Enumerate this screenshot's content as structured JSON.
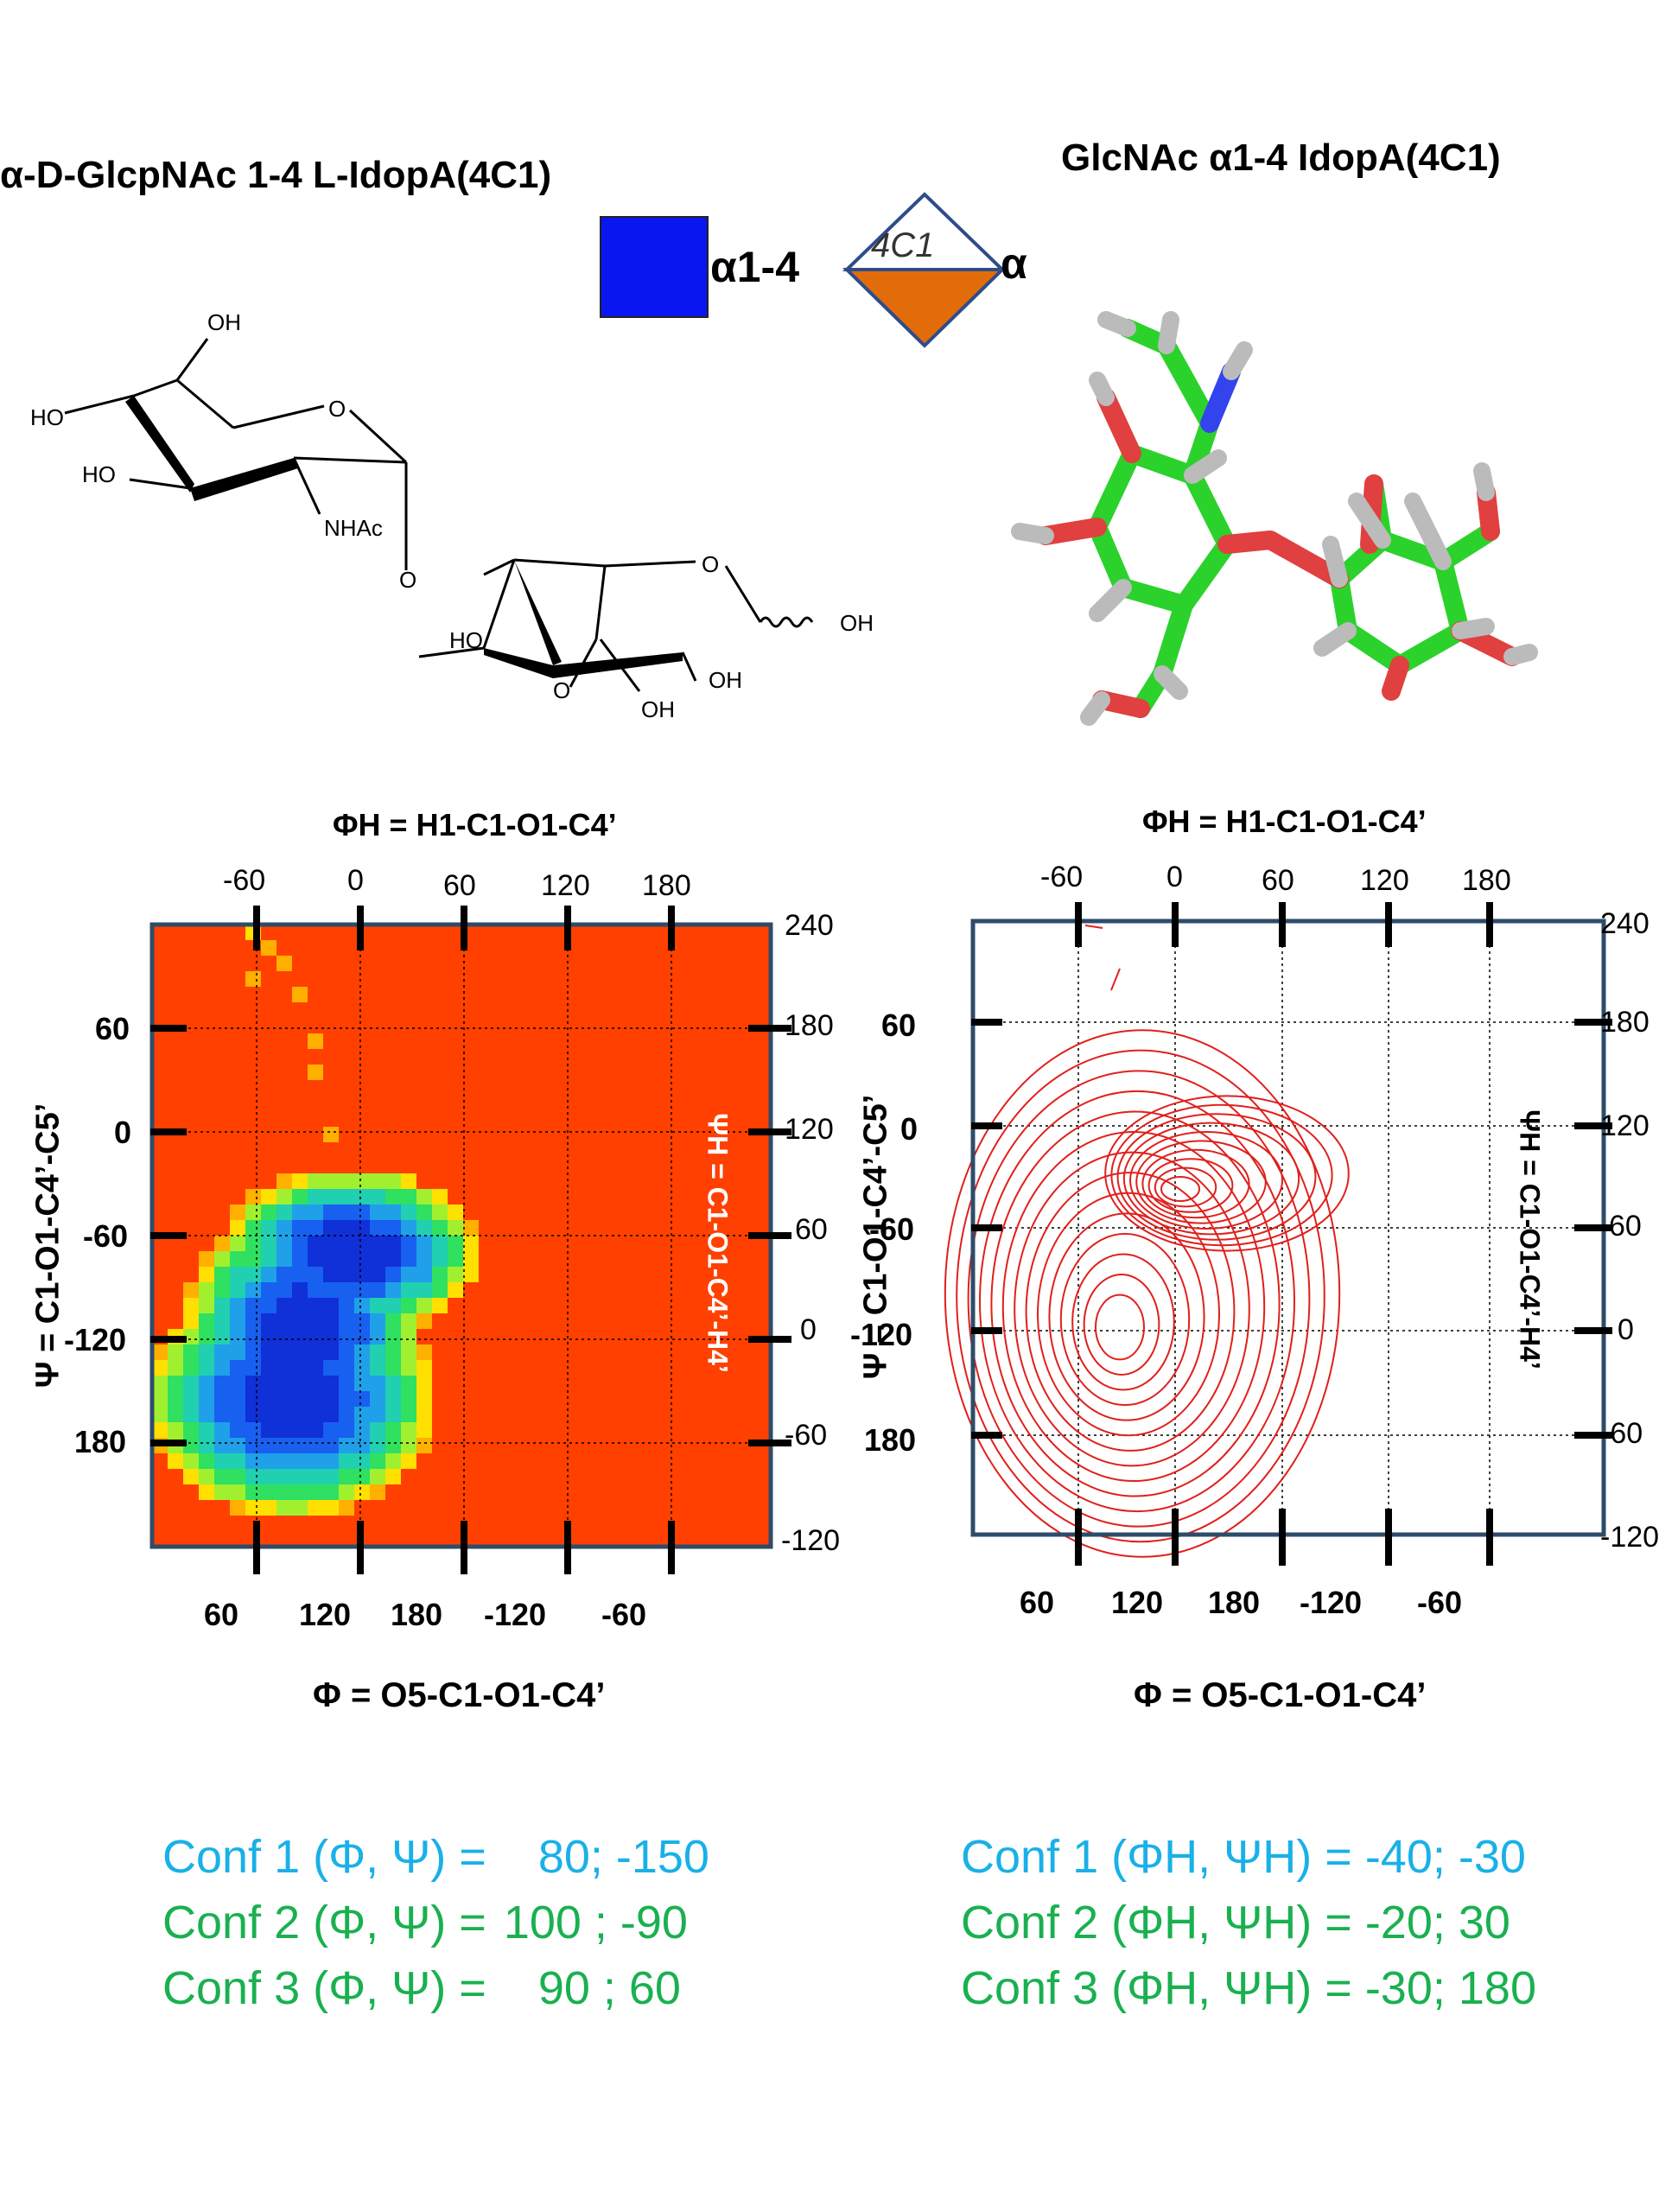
{
  "left_title": "α-D-GlcpNAc 1-4 L-IdopA(4C1)",
  "right_title": "GlcNAc α1-4 IdopA(4C1)",
  "symbol": {
    "linkage_label": "α1-4",
    "ring_label": "4C1",
    "anomer_label": "α",
    "square_color": "#0a16f0",
    "diamond_bottom_color": "#e36c0a"
  },
  "structure_labels": {
    "oh_top": "OH",
    "ho_left": "HO",
    "ho_left2": "HO",
    "o_ring1": "O",
    "nhac": "NHAc",
    "o_link": "O",
    "o_ring2": "O",
    "oh_right": "OH",
    "ho_bottom": "HO",
    "oh_bottom": "OH",
    "o_carbonyl": "O",
    "oh_acid": "OH"
  },
  "left_map": {
    "top_axis_label": "ΦH = H1-C1-O1-C4’",
    "top_ticks": [
      "-60",
      "0",
      "60",
      "120",
      "180"
    ],
    "left_ticks": [
      "60",
      "0",
      "-60",
      "-120",
      "180"
    ],
    "right_ticks": [
      "240",
      "180",
      "120",
      "60",
      "0",
      "-60",
      "-120"
    ],
    "bottom_ticks": [
      "60",
      "120",
      "180",
      "-120",
      "-60"
    ],
    "left_axis_label": "Ψ = C1-O1-C4’-C5’",
    "right_axis_label": "ΨH = C1-O1-C4’-H4’",
    "bottom_axis_label": "Φ = O5-C1-O1-C4’",
    "background_color": "#ff4000"
  },
  "right_map": {
    "top_axis_label": "ΦH = H1-C1-O1-C4’",
    "top_ticks": [
      "-60",
      "0",
      "60",
      "120",
      "180"
    ],
    "left_ticks": [
      "60",
      "0",
      "-60",
      "-120",
      "180"
    ],
    "right_ticks": [
      "240",
      "180",
      "120",
      "60",
      "0",
      "-60",
      "-120"
    ],
    "bottom_ticks": [
      "60",
      "120",
      "180",
      "-120",
      "-60"
    ],
    "left_axis_label": "Ψ = C1-O1-C4’-C5’",
    "right_axis_label": "ΨH = C1-O1-C4’-H4’",
    "bottom_axis_label": "Φ = O5-C1-O1-C4’",
    "contour_color": "#e0201c"
  },
  "conformations_left": [
    {
      "label": "Conf 1 (Φ, Ψ) =",
      "value": "80; -150",
      "color": "#1ab0e8"
    },
    {
      "label": "Conf 2 (Φ, Ψ) =",
      "value": "100 ; -90",
      "color": "#1ab050"
    },
    {
      "label": "Conf 3 (Φ, Ψ) =",
      "value": "90 ;  60",
      "color": "#1ab050"
    }
  ],
  "conformations_right": [
    {
      "label": "Conf 1 (ΦH, ΨH) =",
      "value": "-40; -30",
      "color": "#1ab0e8"
    },
    {
      "label": "Conf 2 (ΦH, ΨH) =",
      "value": "-20; 30",
      "color": "#1ab050"
    },
    {
      "label": "Conf 3 (ΦH, ΨH) =",
      "value": "-30; 180",
      "color": "#1ab050"
    }
  ]
}
